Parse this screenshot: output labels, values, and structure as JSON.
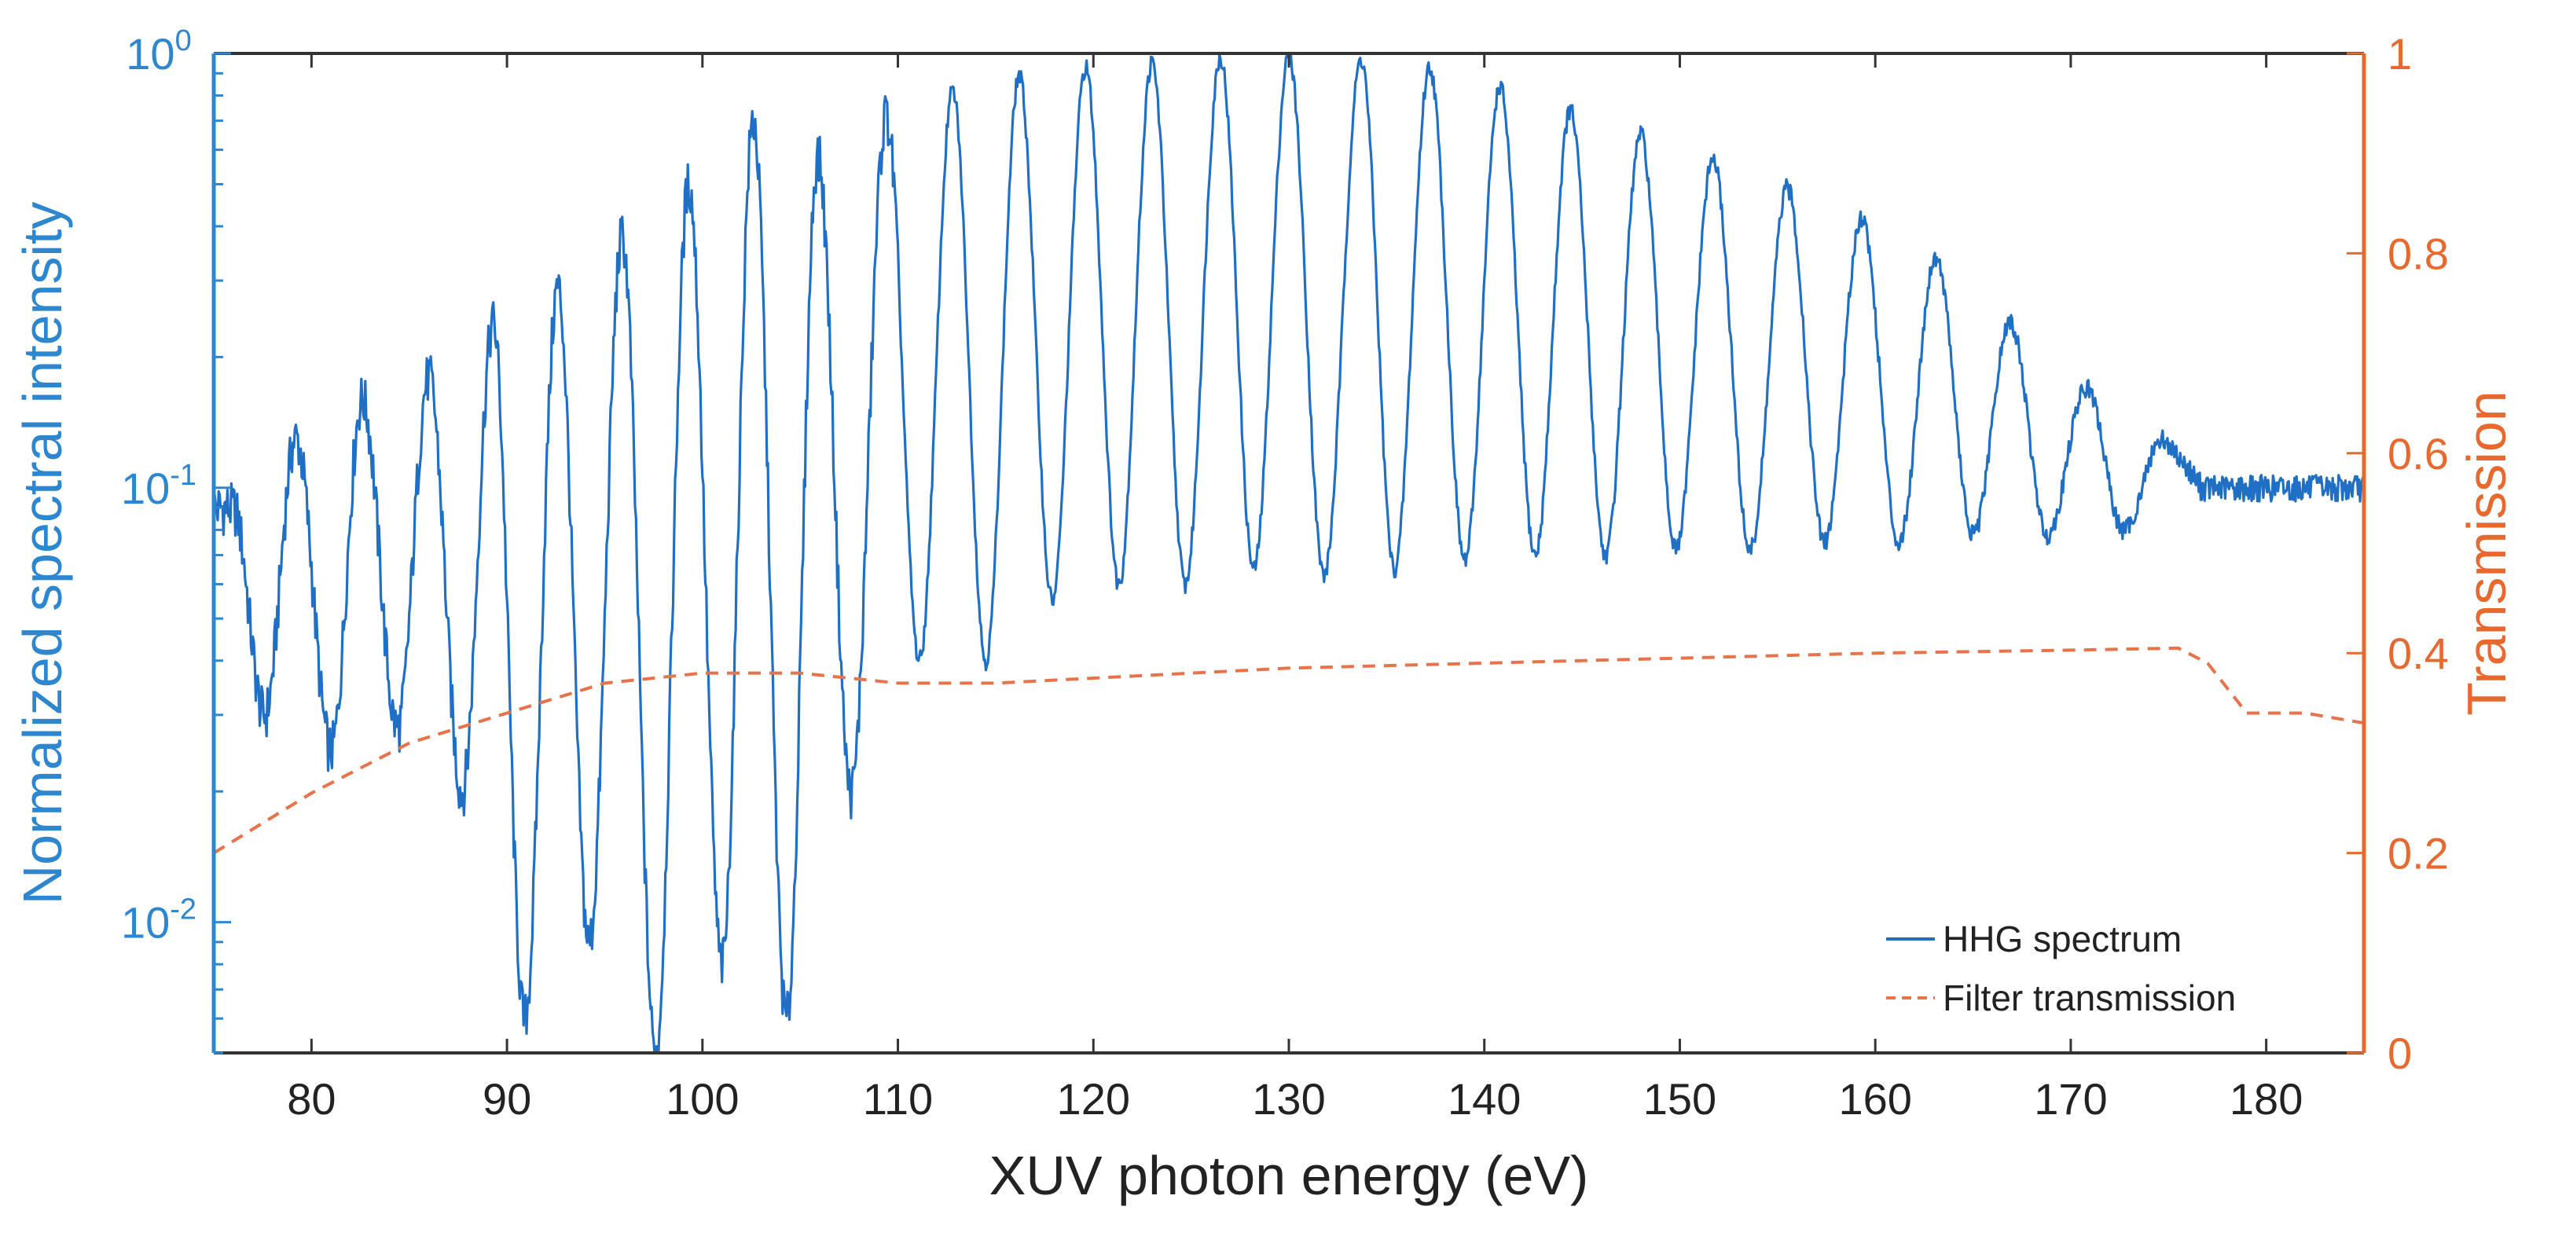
{
  "chart_data": {
    "type": "line",
    "xlabel": "XUV photon energy (eV)",
    "ylabel_left": "Normalized spectral intensity",
    "ylabel_right": "Transmission",
    "xlim": [
      75,
      185
    ],
    "ylim_left": [
      0.005,
      1.0
    ],
    "yscale_left": "log",
    "ylim_right": [
      0,
      1
    ],
    "x_ticks": [
      80,
      90,
      100,
      110,
      120,
      130,
      140,
      150,
      160,
      170,
      180
    ],
    "x_tick_labels": [
      "80",
      "90",
      "100",
      "110",
      "120",
      "130",
      "140",
      "150",
      "160",
      "170",
      "180"
    ],
    "y_left_ticks": [
      {
        "value": 1,
        "base": "10",
        "exp": "0"
      },
      {
        "value": 0.1,
        "base": "10",
        "exp": "-1"
      },
      {
        "value": 0.01,
        "base": "10",
        "exp": "-2"
      }
    ],
    "y_right_ticks": [
      0,
      0.2,
      0.4,
      0.6,
      0.8,
      1
    ],
    "y_right_tick_labels": [
      "0",
      "0.2",
      "0.4",
      "0.6",
      "0.8",
      "1"
    ],
    "grid": false,
    "legend_position": "bottom-right",
    "colors": {
      "spectrum": "#1f6fc5",
      "transmission": "#e8734a",
      "left_axis": "#2c86d0",
      "right_axis": "#e8692e"
    },
    "series": [
      {
        "name": "HHG spectrum",
        "axis": "left",
        "style": "solid",
        "harmonic_peaks": {
          "x": [
            76.0,
            79.2,
            82.6,
            86.0,
            89.3,
            92.6,
            95.9,
            99.3,
            102.6,
            105.9,
            109.4,
            112.8,
            116.2,
            119.6,
            123.0,
            126.5,
            130.0,
            133.7,
            137.2,
            140.8,
            144.4,
            148.0,
            151.7,
            155.5,
            159.3,
            163.1,
            166.9,
            170.8,
            174.7
          ],
          "y": [
            0.09,
            0.13,
            0.16,
            0.18,
            0.24,
            0.29,
            0.38,
            0.5,
            0.7,
            0.58,
            0.72,
            0.82,
            0.89,
            0.93,
            0.95,
            0.98,
            0.99,
            0.97,
            0.93,
            0.84,
            0.74,
            0.65,
            0.57,
            0.49,
            0.42,
            0.34,
            0.24,
            0.17,
            0.13
          ]
        },
        "valley_minima": {
          "x": [
            77.6,
            81.0,
            84.4,
            87.7,
            90.9,
            94.2,
            97.6,
            101.0,
            104.3,
            107.6,
            111.1,
            114.5,
            117.9,
            121.3,
            124.7,
            128.2,
            131.8,
            135.4,
            139.0,
            142.6,
            146.2,
            149.8,
            153.6,
            157.4,
            161.2,
            165.0,
            168.8,
            172.7
          ],
          "y": [
            0.03,
            0.025,
            0.028,
            0.02,
            0.006,
            0.009,
            0.005,
            0.008,
            0.006,
            0.02,
            0.04,
            0.04,
            0.055,
            0.06,
            0.06,
            0.065,
            0.063,
            0.065,
            0.068,
            0.07,
            0.07,
            0.072,
            0.072,
            0.075,
            0.075,
            0.078,
            0.078,
            0.08
          ]
        },
        "plateau_after_cutoff": {
          "x_range": [
            176,
            185
          ],
          "y": 0.1
        }
      },
      {
        "name": "Filter transmission",
        "axis": "right",
        "style": "dashed",
        "x": [
          75,
          80,
          85,
          90,
          95,
          100,
          105,
          110,
          115,
          120,
          130,
          140,
          150,
          160,
          170,
          175.5,
          177,
          179,
          182,
          185
        ],
        "y": [
          0.2,
          0.26,
          0.31,
          0.34,
          0.37,
          0.38,
          0.38,
          0.37,
          0.37,
          0.375,
          0.385,
          0.39,
          0.395,
          0.4,
          0.403,
          0.405,
          0.39,
          0.34,
          0.34,
          0.33
        ]
      }
    ],
    "legend": [
      {
        "label": "HHG spectrum",
        "style": "solid"
      },
      {
        "label": "Filter transmission",
        "style": "dashed"
      }
    ]
  }
}
